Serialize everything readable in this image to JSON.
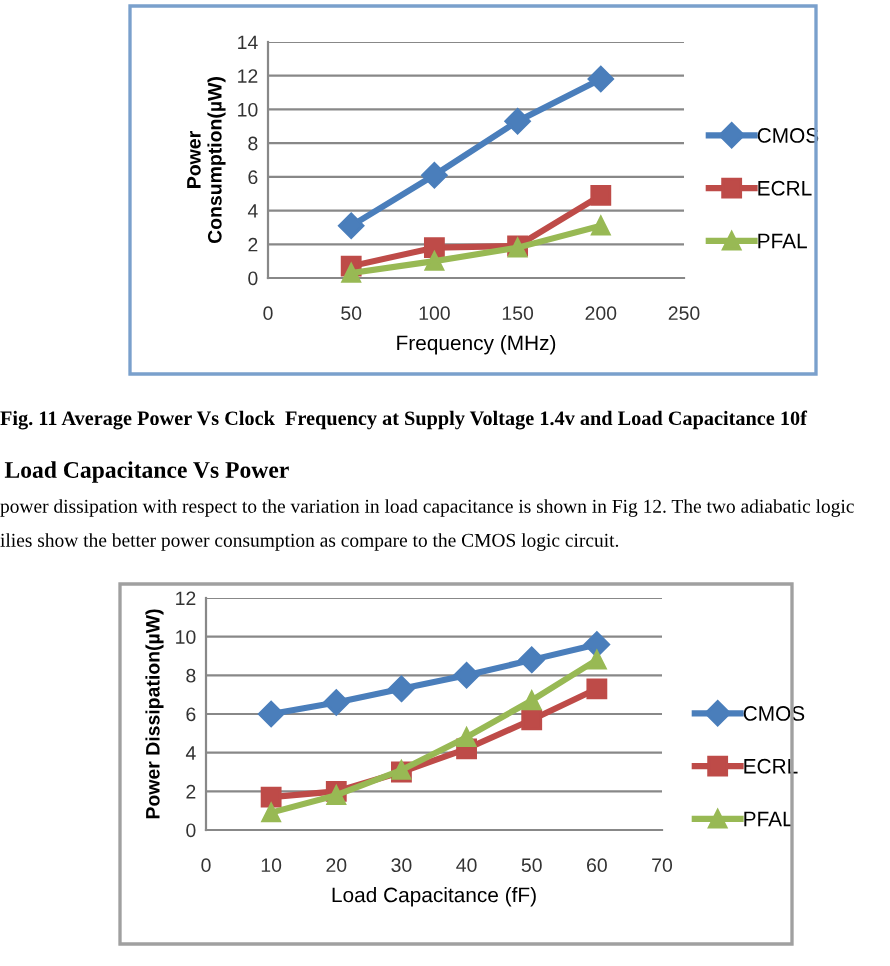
{
  "chart_data": [
    {
      "type": "line",
      "xlabel": "Frequency (MHz)",
      "ylabel": "Power\nConsumption(µW)",
      "x": [
        50,
        100,
        150,
        200
      ],
      "xlim": [
        0,
        250
      ],
      "xticks": [
        0,
        50,
        100,
        150,
        200,
        250
      ],
      "ylim": [
        0,
        14
      ],
      "yticks": [
        0,
        2,
        4,
        6,
        8,
        10,
        12,
        14
      ],
      "grid": "y",
      "legend": "right",
      "series": [
        {
          "name": "CMOS",
          "color": "#4a7ebb",
          "marker": "diamond",
          "values": [
            3.1,
            6.1,
            9.3,
            11.8
          ]
        },
        {
          "name": "ECRL",
          "color": "#be4b48",
          "marker": "square",
          "values": [
            0.7,
            1.8,
            1.9,
            4.9
          ]
        },
        {
          "name": "PFAL",
          "color": "#98b954",
          "marker": "triangle",
          "values": [
            0.3,
            1.0,
            1.8,
            3.1
          ]
        }
      ],
      "annotations": [
        "Fig. 11 Average Power Vs Clock  Frequency at Supply Voltage 1.4v and Load Capacitance 10f",
        "Load Capacitance Vs Power",
        "power dissipation with respect to the variation in load capacitance is shown in Fig 12. The two adiabatic logic",
        "ilies show the better power consumption as compare to the CMOS logic circuit."
      ]
    },
    {
      "type": "line",
      "xlabel": "Load Capacitance (fF)",
      "ylabel": "Power Dissipation(µW)",
      "x": [
        10,
        20,
        30,
        40,
        50,
        60
      ],
      "xlim": [
        0,
        70
      ],
      "xticks": [
        0,
        10,
        20,
        30,
        40,
        50,
        60,
        70
      ],
      "ylim": [
        0,
        12
      ],
      "yticks": [
        0,
        2,
        4,
        6,
        8,
        10,
        12
      ],
      "grid": "y",
      "legend": "right",
      "series": [
        {
          "name": "CMOS",
          "color": "#4a7ebb",
          "marker": "diamond",
          "values": [
            6.0,
            6.6,
            7.3,
            8.0,
            8.8,
            9.6
          ]
        },
        {
          "name": "ECRL",
          "color": "#be4b48",
          "marker": "square",
          "values": [
            1.7,
            2.0,
            3.0,
            4.2,
            5.7,
            7.3
          ]
        },
        {
          "name": "PFAL",
          "color": "#98b954",
          "marker": "triangle",
          "values": [
            0.9,
            1.8,
            3.1,
            4.8,
            6.7,
            8.8
          ]
        }
      ]
    }
  ]
}
